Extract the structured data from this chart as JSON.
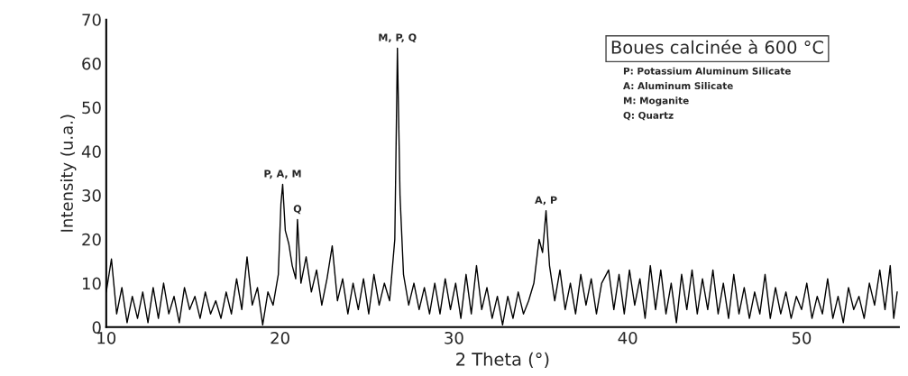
{
  "chart_data": {
    "type": "line",
    "xlabel": "2 Theta (°)",
    "ylabel": "Intensity (u.a.)",
    "xlim": [
      10,
      55.6
    ],
    "xticks": [
      10,
      20,
      30,
      40,
      50
    ],
    "ylim": [
      0,
      70
    ],
    "yticks": [
      0,
      10,
      20,
      30,
      40,
      50,
      60,
      70
    ],
    "grid": false,
    "legend": false,
    "marker": "none",
    "line_style": "solid",
    "series": [
      {
        "color": "#000000",
        "x": [
          10.0,
          10.3,
          10.6,
          10.9,
          11.2,
          11.5,
          11.8,
          12.1,
          12.4,
          12.7,
          13.0,
          13.3,
          13.6,
          13.9,
          14.2,
          14.5,
          14.8,
          15.1,
          15.4,
          15.7,
          16.0,
          16.3,
          16.6,
          16.9,
          17.2,
          17.5,
          17.8,
          18.1,
          18.4,
          18.7,
          19.0,
          19.3,
          19.6,
          19.9,
          20.05,
          20.15,
          20.3,
          20.5,
          20.7,
          20.9,
          21.0,
          21.2,
          21.5,
          21.8,
          22.1,
          22.4,
          22.7,
          23.0,
          23.3,
          23.6,
          23.9,
          24.2,
          24.5,
          24.8,
          25.1,
          25.4,
          25.7,
          26.0,
          26.3,
          26.6,
          26.75,
          26.9,
          27.1,
          27.4,
          27.7,
          28.0,
          28.3,
          28.6,
          28.9,
          29.2,
          29.5,
          29.8,
          30.1,
          30.4,
          30.7,
          31.0,
          31.3,
          31.6,
          31.9,
          32.2,
          32.5,
          32.8,
          33.1,
          33.4,
          33.7,
          34.0,
          34.3,
          34.6,
          34.9,
          35.1,
          35.3,
          35.5,
          35.8,
          36.1,
          36.4,
          36.7,
          37.0,
          37.3,
          37.6,
          37.9,
          38.2,
          38.5,
          38.9,
          39.2,
          39.5,
          39.8,
          40.1,
          40.4,
          40.7,
          41.0,
          41.3,
          41.6,
          41.9,
          42.2,
          42.5,
          42.8,
          43.1,
          43.4,
          43.7,
          44.0,
          44.3,
          44.6,
          44.9,
          45.2,
          45.5,
          45.8,
          46.1,
          46.4,
          46.7,
          47.0,
          47.3,
          47.6,
          47.9,
          48.2,
          48.5,
          48.8,
          49.1,
          49.4,
          49.7,
          50.0,
          50.3,
          50.6,
          50.9,
          51.2,
          51.5,
          51.8,
          52.1,
          52.4,
          52.7,
          53.0,
          53.3,
          53.6,
          53.9,
          54.2,
          54.5,
          54.8,
          55.1,
          55.3,
          55.5
        ],
        "values": [
          8,
          15.5,
          3,
          9,
          1,
          7,
          2,
          8,
          1,
          9,
          2,
          10,
          3,
          7,
          1,
          9,
          4,
          7,
          2,
          8,
          3,
          6,
          2,
          8,
          3,
          11,
          4,
          16,
          5,
          9,
          0.5,
          8,
          5,
          12,
          28,
          32.5,
          22,
          19,
          14,
          11,
          24.5,
          10,
          16,
          8,
          13,
          5,
          11,
          18.5,
          6,
          11,
          3,
          10,
          4,
          11,
          3,
          12,
          5,
          10,
          6,
          20,
          63.5,
          30,
          12,
          5,
          10,
          4,
          9,
          3,
          10,
          3,
          11,
          4,
          10,
          2,
          12,
          3,
          14,
          4,
          9,
          2,
          7,
          0.5,
          7,
          2,
          8,
          3,
          6,
          10,
          20,
          17,
          26.5,
          14,
          6,
          13,
          4,
          10,
          3,
          12,
          5,
          11,
          3,
          10,
          13,
          4,
          12,
          3,
          13,
          5,
          11,
          2,
          14,
          4,
          13,
          3,
          10,
          1,
          12,
          4,
          13,
          3,
          11,
          4,
          13,
          3,
          10,
          2,
          12,
          3,
          9,
          2,
          8,
          3,
          12,
          2,
          9,
          3,
          8,
          2,
          7,
          4,
          10,
          2,
          7,
          3,
          11,
          2,
          7,
          1,
          9,
          4,
          7,
          2,
          10,
          5,
          13,
          4,
          14,
          2,
          8
        ]
      }
    ],
    "annotations": [
      {
        "text": "P, A, M",
        "x": 20.15,
        "y": 32.5
      },
      {
        "text": "Q",
        "x": 21.0,
        "y": 24.5
      },
      {
        "text": "M, P, Q",
        "x": 26.75,
        "y": 63.5
      },
      {
        "text": "A, P",
        "x": 35.3,
        "y": 26.5
      },
      "Boues calcinée à 600 °C",
      "P: Potassium Aluminum Silicate",
      "A: Aluminum Silicate",
      "M: Moganite",
      "Q: Quartz"
    ]
  }
}
